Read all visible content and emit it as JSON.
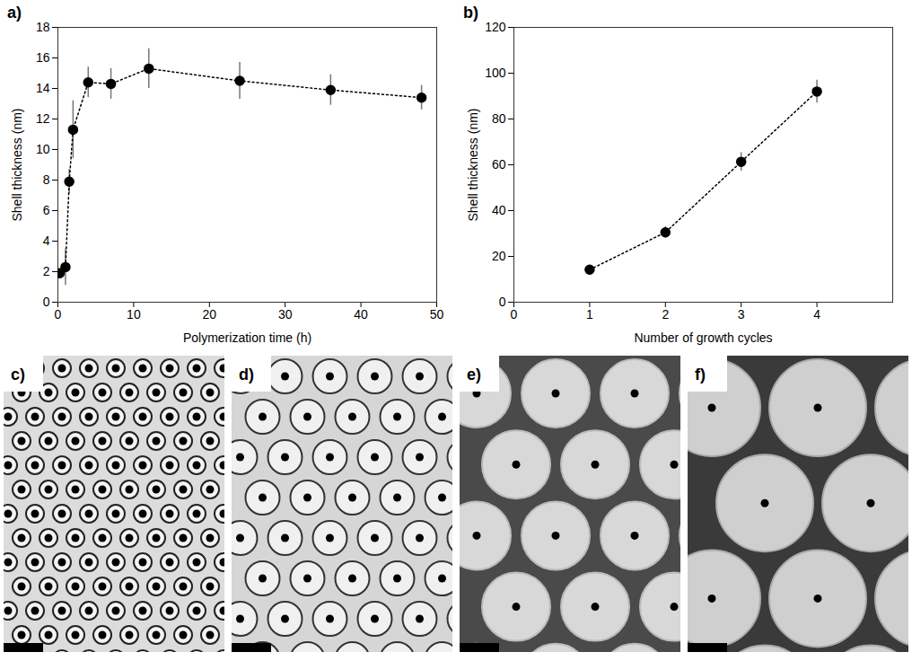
{
  "chart_data": [
    {
      "type": "line",
      "panel": "a)",
      "x_label": "Polymerization time (h)",
      "y_label": "Shell thickness (nm)",
      "x": [
        0.25,
        1,
        1.5,
        2,
        4,
        7,
        12,
        24,
        36,
        48
      ],
      "values": [
        1.9,
        2.3,
        7.9,
        11.3,
        14.4,
        14.3,
        15.3,
        14.5,
        13.9,
        13.4
      ],
      "errors": [
        0.3,
        1.2,
        0.8,
        1.9,
        1.0,
        1.0,
        1.3,
        1.2,
        1.0,
        0.8
      ],
      "color": "#000000",
      "marker": "circle",
      "line_style": "dotted",
      "grid": false,
      "xlim": [
        0,
        50
      ],
      "xticks": [
        0,
        10,
        20,
        30,
        40,
        50
      ],
      "ylim": [
        0,
        18
      ],
      "yticks": [
        0,
        2,
        4,
        6,
        8,
        10,
        12,
        14,
        16,
        18
      ]
    },
    {
      "type": "line",
      "panel": "b)",
      "x_label": "Number of growth cycles",
      "y_label": "Shell thickness (nm)",
      "x": [
        1,
        2,
        3,
        4
      ],
      "values": [
        14.2,
        30.5,
        61.3,
        92
      ],
      "errors": [
        1.0,
        2.5,
        4.0,
        5.0
      ],
      "color": "#000000",
      "marker": "circle",
      "line_style": "dotted",
      "grid": false,
      "xlim": [
        0,
        5
      ],
      "xticks": [
        0,
        1,
        2,
        3,
        4
      ],
      "ylim": [
        0,
        120
      ],
      "yticks": [
        0,
        20,
        40,
        60,
        80,
        100,
        120
      ]
    }
  ],
  "micrographs": [
    {
      "panel": "c)"
    },
    {
      "panel": "d)"
    },
    {
      "panel": "e)"
    },
    {
      "panel": "f)"
    }
  ]
}
